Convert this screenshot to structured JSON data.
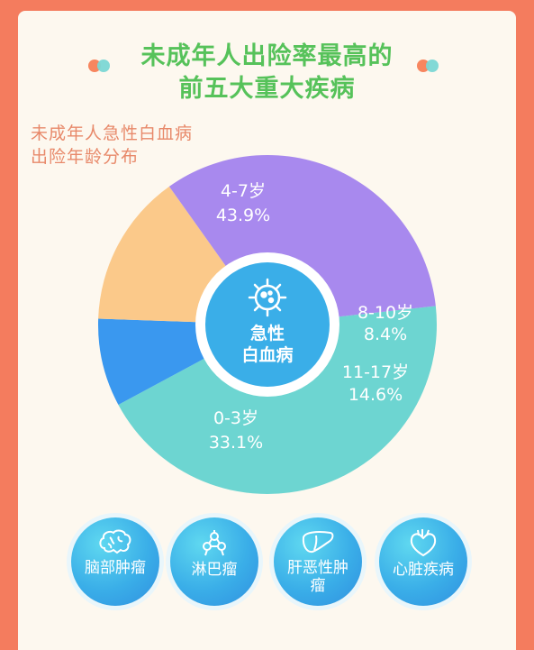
{
  "header": {
    "title_line1": "未成年人出险率最高的",
    "title_line2": "前五大重大疾病"
  },
  "subtitle": {
    "line1": "未成年人急性白血病",
    "line2": "出险年龄分布"
  },
  "center": {
    "line1": "急性",
    "line2": "白血病",
    "icon": "virus-icon"
  },
  "chart_data": {
    "type": "pie",
    "title": "",
    "slices": [
      {
        "name": "4-7岁",
        "value": 43.9,
        "percent_label": "43.9%",
        "color": "#6dd5d1"
      },
      {
        "name": "8-10岁",
        "value": 8.4,
        "percent_label": "8.4%",
        "color": "#3a98ef"
      },
      {
        "name": "11-17岁",
        "value": 14.6,
        "percent_label": "14.6%",
        "color": "#fbc98a"
      },
      {
        "name": "0-3岁",
        "value": 33.1,
        "percent_label": "33.1%",
        "color": "#a889ee"
      }
    ]
  },
  "diseases": [
    {
      "label": "脑部肿瘤",
      "icon": "brain-icon"
    },
    {
      "label": "淋巴瘤",
      "icon": "lymph-icon"
    },
    {
      "label": "肝恶性肿瘤",
      "icon": "liver-icon"
    },
    {
      "label": "心脏疾病",
      "icon": "heart-icon"
    }
  ],
  "colors": {
    "background": "#f47c5e",
    "card": "#fdf8ef",
    "title": "#56c25a",
    "subtitle": "#e8896a",
    "center": "#3aaee8"
  }
}
